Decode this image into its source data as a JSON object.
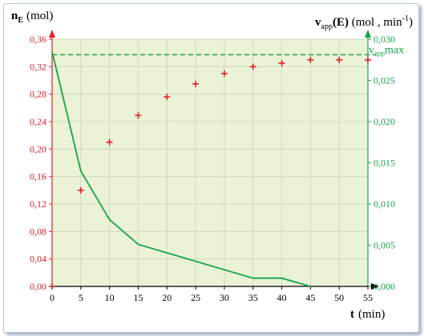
{
  "chart_data": {
    "type": "scatter",
    "x_axis": {
      "label": "t",
      "unit": "(min)",
      "range": [
        0,
        55
      ],
      "ticks": [
        "0",
        "5",
        "10",
        "15",
        "20",
        "25",
        "30",
        "35",
        "40",
        "45",
        "50",
        "55"
      ]
    },
    "y_left": {
      "label": "n",
      "subscript": "E",
      "unit": "(mol)",
      "range": [
        0,
        0.36
      ],
      "ticks": [
        "0,00",
        "0,04",
        "0,08",
        "0,12",
        "0,16",
        "0,20",
        "0,24",
        "0,28",
        "0,32",
        "0,36"
      ],
      "color": "#e0202a"
    },
    "y_right": {
      "label_v": "v",
      "label_sub": "app",
      "label_paren": "(E)",
      "label_unit": " (mol , min",
      "label_exp": "-1",
      "label_close": ")",
      "range": [
        0,
        0.03
      ],
      "ticks": [
        "0,000",
        "0,005",
        "0,010",
        "0,015",
        "0,020",
        "0,025",
        "0,030"
      ],
      "color": "#1aa24a"
    },
    "series": [
      {
        "axis": "left",
        "marker": "plus",
        "color": "#e0202a",
        "x": [
          0,
          5,
          10,
          15,
          20,
          25,
          30,
          35,
          40,
          45,
          50,
          55
        ],
        "y": [
          0,
          0.14,
          0.21,
          0.249,
          0.276,
          0.295,
          0.31,
          0.32,
          0.325,
          0.33,
          0.33,
          0.33
        ]
      },
      {
        "axis": "right",
        "marker": "line",
        "color": "#1aa24a",
        "x": [
          0,
          5,
          10,
          15,
          35,
          40,
          45
        ],
        "y": [
          0.0285,
          0.014,
          0.0081,
          0.0051,
          0.001,
          0.001,
          0
        ]
      }
    ],
    "reference_line": {
      "axis": "left",
      "y": 0.3375,
      "label": "v",
      "label_sub": "app",
      "label_suffix": "max",
      "color": "#1aa24a"
    },
    "plot_background": "#eaf3d6",
    "grid": true
  }
}
